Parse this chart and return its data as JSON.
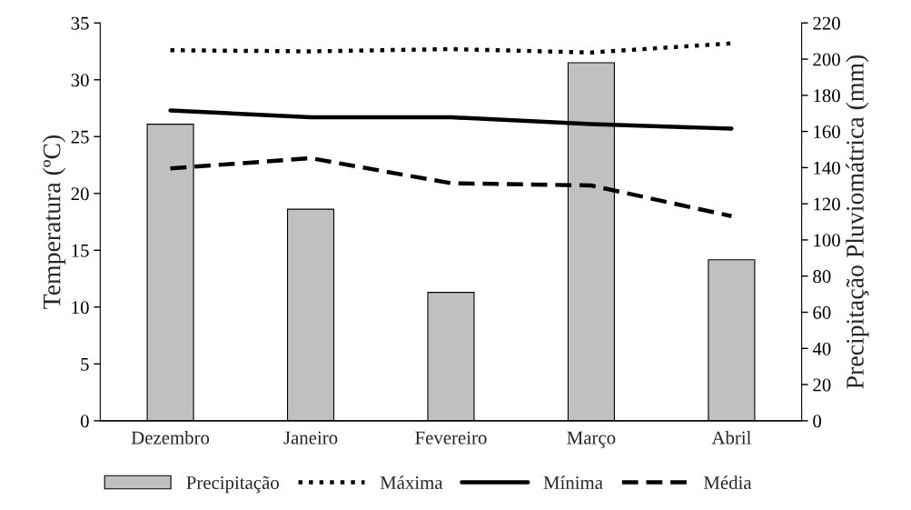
{
  "chart_data": {
    "type": "line",
    "ylabel": "Temperatura (ºC)",
    "y2label": "Precipitação Pluviomátrica (mm)",
    "categories": [
      "Dezembro",
      "Janeiro",
      "Fevereiro",
      "Março",
      "Abril"
    ],
    "series": [
      {
        "name": "Precipitação",
        "type": "bar",
        "axis": "y2",
        "color": "#c0c0c0",
        "values": [
          164,
          117,
          71,
          198,
          89
        ]
      },
      {
        "name": "Máxima",
        "line_style": "dotted",
        "color": "#000000",
        "values": [
          32.6,
          32.5,
          32.7,
          32.4,
          33.2
        ]
      },
      {
        "name": "Mínima",
        "line_style": "solid",
        "color": "#000000",
        "values": [
          27.3,
          26.7,
          26.7,
          26.1,
          25.7
        ]
      },
      {
        "name": "Média",
        "line_style": "dashed",
        "color": "#000000",
        "values": [
          22.2,
          23.1,
          20.9,
          20.7,
          18.0
        ]
      }
    ],
    "ylim": [
      0,
      35
    ],
    "yticks": [
      0,
      5,
      10,
      15,
      20,
      25,
      30,
      35
    ],
    "y2lim": [
      0,
      220
    ],
    "y2ticks": [
      0,
      20,
      40,
      60,
      80,
      100,
      120,
      140,
      160,
      180,
      200,
      220
    ],
    "grid": false,
    "legend": "bottom",
    "marker": "none"
  }
}
